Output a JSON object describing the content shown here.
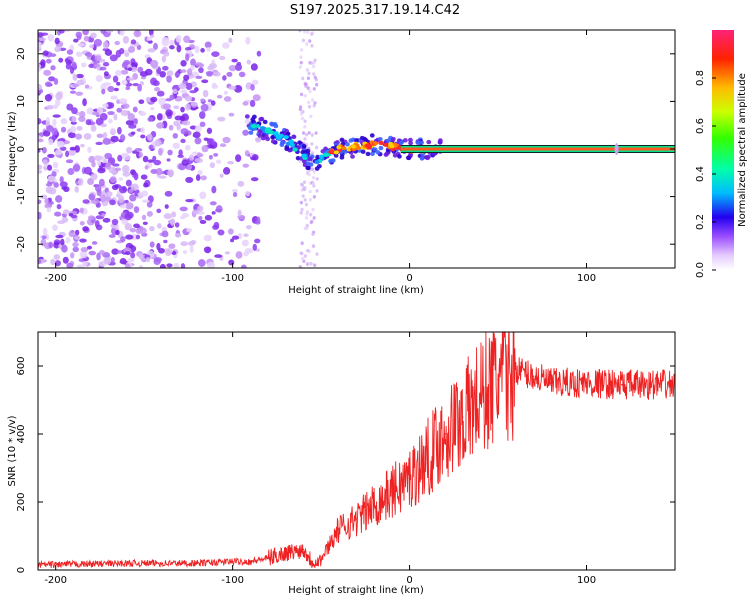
{
  "figure": {
    "title": "S197.2025.317.19.14.C42"
  },
  "chart_data": [
    {
      "type": "heatmap",
      "xlabel": "Height of straight line (km)",
      "ylabel": "Frequency (Hz)",
      "xlim": [
        -210,
        150
      ],
      "ylim": [
        -25,
        25
      ],
      "xticks": [
        -200,
        -100,
        0,
        100
      ],
      "yticks": [
        -20,
        -10,
        0,
        10,
        20
      ],
      "colorbar": {
        "label": "Normalized spectral amplitude",
        "range": [
          0,
          1
        ],
        "ticks": [
          "0.0",
          "0.2",
          "0.4",
          "0.6",
          "0.8"
        ]
      },
      "ridge": {
        "x": [
          -90,
          -80,
          -70,
          -60,
          -55,
          -50,
          -45,
          -40,
          -30,
          -20,
          -10,
          0,
          20,
          50,
          100,
          150
        ],
        "y": [
          5,
          4,
          2,
          -1,
          -3,
          -2,
          -1,
          0,
          0.5,
          1,
          0.5,
          0,
          0,
          0,
          0,
          0
        ]
      },
      "grid": false
    },
    {
      "type": "line",
      "xlabel": "Height of straight line (km)",
      "ylabel": "SNR (10 * v/v)",
      "xlim": [
        -210,
        150
      ],
      "ylim": [
        0,
        700
      ],
      "xticks": [
        -200,
        -100,
        0,
        100
      ],
      "yticks": [
        0,
        200,
        400,
        600
      ],
      "color": "#ee2222",
      "x": [
        -210,
        -180,
        -150,
        -120,
        -100,
        -90,
        -80,
        -70,
        -60,
        -55,
        -50,
        -45,
        -40,
        -30,
        -20,
        -10,
        0,
        10,
        20,
        30,
        40,
        50,
        60,
        70,
        80,
        100,
        120,
        140,
        150
      ],
      "y": [
        15,
        18,
        20,
        20,
        25,
        25,
        35,
        50,
        60,
        25,
        30,
        80,
        120,
        150,
        190,
        230,
        270,
        330,
        400,
        450,
        510,
        560,
        590,
        570,
        550,
        550,
        545,
        545,
        545
      ],
      "grid": false
    }
  ]
}
